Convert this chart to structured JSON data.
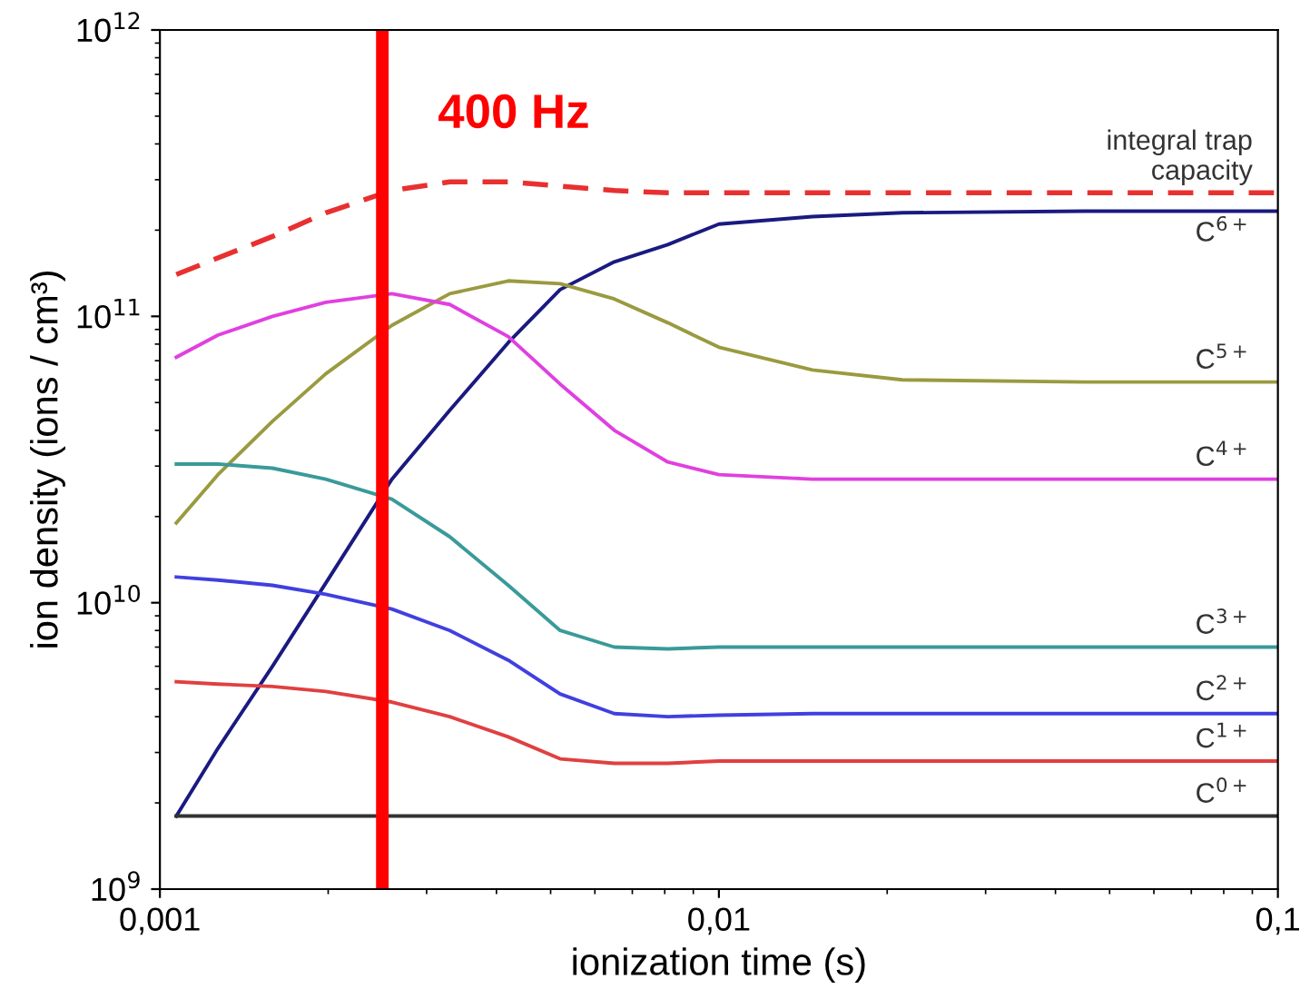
{
  "chart_data": {
    "type": "line",
    "xlabel": "ionization time (s)",
    "ylabel": "ion density (ions / cm³)",
    "log": "xy",
    "grid": false,
    "legend": false,
    "marker": "none",
    "xlim": [
      0.001,
      0.1
    ],
    "ylim": [
      1000000000.0,
      1000000000000.0
    ],
    "xticks": [
      {
        "value": 0.001,
        "label": "0,001"
      },
      {
        "value": 0.01,
        "label": "0,01"
      },
      {
        "value": 0.1,
        "label": "0,1"
      }
    ],
    "yticks": [
      {
        "value": 1000000000.0,
        "label": "10$^{9}$"
      },
      {
        "value": 10000000000.0,
        "label": "10$^{10}$"
      },
      {
        "value": 100000000000.0,
        "label": "10$^{11}$"
      },
      {
        "value": 1000000000000.0,
        "label": "10$^{12}$"
      }
    ],
    "x": [
      0.00107,
      0.00127,
      0.00159,
      0.00198,
      0.0026,
      0.0033,
      0.0042,
      0.0052,
      0.0065,
      0.0081,
      0.01,
      0.0147,
      0.0213,
      0.045,
      0.1
    ],
    "series": [
      {
        "name": "integral trap\ncapacity",
        "color": "#e83030",
        "line_style": "dashed",
        "values": [
          140000000000.0,
          160000000000.0,
          190000000000.0,
          230000000000.0,
          275000000000.0,
          295000000000.0,
          295000000000.0,
          285000000000.0,
          275000000000.0,
          270000000000.0,
          270000000000.0,
          270000000000.0,
          270000000000.0,
          270000000000.0,
          270000000000.0
        ]
      },
      {
        "name": "C$^{6+}$",
        "color": "#1a1a80",
        "values": [
          1800000000.0,
          3100000000.0,
          6000000000.0,
          11700000000.0,
          27000000000.0,
          47000000000.0,
          81000000000.0,
          124000000000.0,
          155000000000.0,
          178000000000.0,
          210000000000.0,
          223000000000.0,
          230000000000.0,
          233000000000.0,
          233000000000.0
        ]
      },
      {
        "name": "C$^{5+}$",
        "color": "#9a9a40",
        "values": [
          19000000000.0,
          28000000000.0,
          43000000000.0,
          63000000000.0,
          93000000000.0,
          120000000000.0,
          133000000000.0,
          130000000000.0,
          115000000000.0,
          95000000000.0,
          78000000000.0,
          65000000000.0,
          60000000000.0,
          59000000000.0,
          59000000000.0
        ]
      },
      {
        "name": "C$^{4+}$",
        "color": "#e040e0",
        "values": [
          72000000000.0,
          86000000000.0,
          100000000000.0,
          112000000000.0,
          120000000000.0,
          110000000000.0,
          85000000000.0,
          58000000000.0,
          40000000000.0,
          31000000000.0,
          28000000000.0,
          27000000000.0,
          27000000000.0,
          27000000000.0,
          27000000000.0
        ]
      },
      {
        "name": "C$^{3+}$",
        "color": "#3a9a9a",
        "values": [
          30500000000.0,
          30500000000.0,
          29500000000.0,
          27000000000.0,
          23000000000.0,
          17000000000.0,
          11500000000.0,
          8000000000.0,
          7000000000.0,
          6900000000.0,
          7000000000.0,
          7000000000.0,
          7000000000.0,
          7000000000.0,
          7000000000.0
        ]
      },
      {
        "name": "C$^{2+}$",
        "color": "#4040e0",
        "values": [
          12300000000.0,
          12000000000.0,
          11500000000.0,
          10700000000.0,
          9500000000.0,
          8000000000.0,
          6300000000.0,
          4800000000.0,
          4100000000.0,
          4000000000.0,
          4050000000.0,
          4100000000.0,
          4100000000.0,
          4100000000.0,
          4100000000.0
        ]
      },
      {
        "name": "C$^{1+}$",
        "color": "#e04040",
        "values": [
          5300000000.0,
          5200000000.0,
          5100000000.0,
          4900000000.0,
          4500000000.0,
          4000000000.0,
          3400000000.0,
          2850000000.0,
          2750000000.0,
          2750000000.0,
          2800000000.0,
          2800000000.0,
          2800000000.0,
          2800000000.0,
          2800000000.0
        ]
      },
      {
        "name": "C$^{0+}$",
        "color": "#333333",
        "values": [
          1800000000.0,
          1800000000.0,
          1800000000.0,
          1800000000.0,
          1800000000.0,
          1800000000.0,
          1800000000.0,
          1800000000.0,
          1800000000.0,
          1800000000.0,
          1800000000.0,
          1800000000.0,
          1800000000.0,
          1800000000.0,
          1800000000.0
        ]
      }
    ],
    "ref_lines": [
      {
        "axis": "x",
        "value": 0.0025,
        "label": "400 Hz",
        "color": "#ff0000"
      }
    ]
  }
}
